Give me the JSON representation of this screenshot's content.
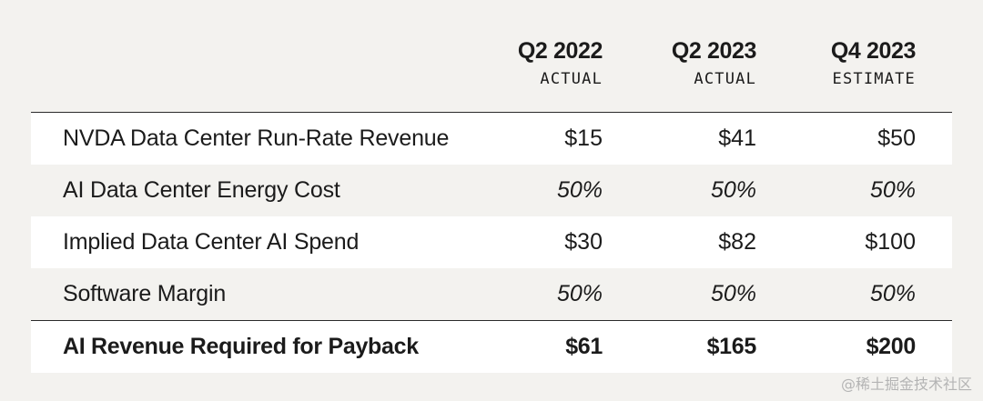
{
  "columns": [
    {
      "period": "Q2 2022",
      "kind": "ACTUAL"
    },
    {
      "period": "Q2 2023",
      "kind": "ACTUAL"
    },
    {
      "period": "Q4 2023",
      "kind": "ESTIMATE"
    }
  ],
  "rows": [
    {
      "label": "NVDA Data Center Run-Rate Revenue",
      "values": [
        "$15",
        "$41",
        "$50"
      ]
    },
    {
      "label": "AI Data Center Energy Cost",
      "values": [
        "50%",
        "50%",
        "50%"
      ]
    },
    {
      "label": "Implied Data Center AI Spend",
      "values": [
        "$30",
        "$82",
        "$100"
      ]
    },
    {
      "label": "Software Margin",
      "values": [
        "50%",
        "50%",
        "50%"
      ]
    },
    {
      "label": "AI Revenue Required for Payback",
      "values": [
        "$61",
        "$165",
        "$200"
      ]
    }
  ],
  "watermark": "@稀土掘金技术社区"
}
